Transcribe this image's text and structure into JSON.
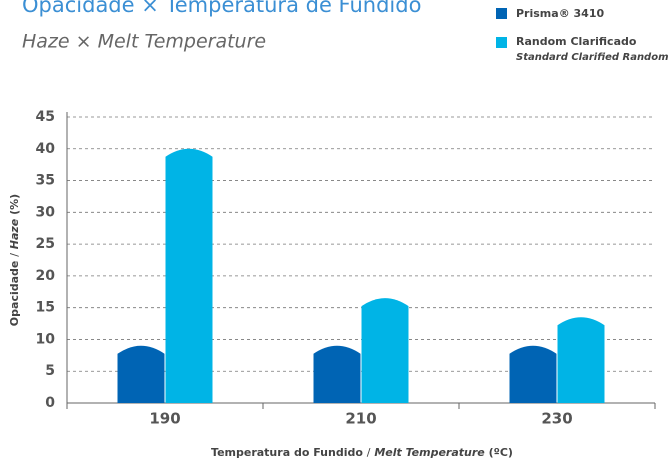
{
  "chart_data": {
    "type": "bar",
    "title": "Opacidade × Temperatura de Fundido",
    "subtitle": "Haze × Melt Temperature",
    "categories": [
      "190",
      "210",
      "230"
    ],
    "series": [
      {
        "name": "Prisma® 3410",
        "color": "#0064b4",
        "values": [
          9,
          9,
          9
        ]
      },
      {
        "name": "Random Clarificado",
        "note": "Standard Clarified Random",
        "color": "#00b4e6",
        "values": [
          40,
          16.5,
          13.5
        ]
      }
    ],
    "y_label": {
      "main": "Opacidade",
      "sep": "/",
      "alt": "Haze",
      "unit": "(%)"
    },
    "x_label": {
      "main": "Temperatura do Fundido",
      "sep": "/",
      "alt": "Melt Temperature",
      "unit": "(ºC)"
    },
    "ylim": [
      0,
      45
    ],
    "yticks": [
      0,
      5,
      10,
      15,
      20,
      25,
      30,
      35,
      40,
      45
    ],
    "grid": true
  }
}
